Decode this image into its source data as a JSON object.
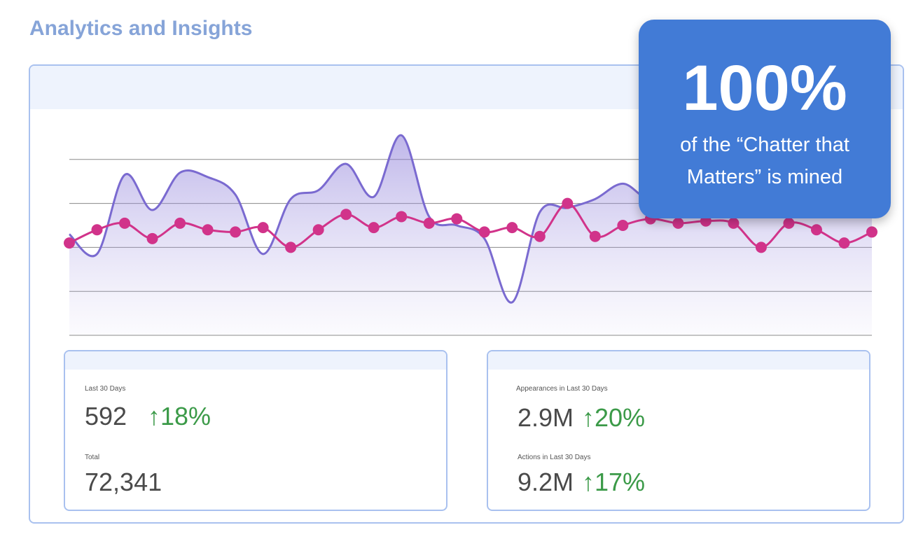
{
  "page": {
    "title": "Analytics and Insights"
  },
  "callout": {
    "value": "100%",
    "text": "of the “Chatter that Matters” is mined",
    "background": "#427bd6"
  },
  "chart_data": {
    "type": "line",
    "title": "",
    "xlabel": "",
    "ylabel": "",
    "ylim": [
      0,
      100
    ],
    "grid": true,
    "legend": "none",
    "x": [
      1,
      2,
      3,
      4,
      5,
      6,
      7,
      8,
      9,
      10,
      11,
      12,
      13,
      14,
      15,
      16,
      17,
      18,
      19,
      20,
      21,
      22,
      23,
      24,
      25,
      26,
      27,
      28,
      29,
      30
    ],
    "series": [
      {
        "kind": "area",
        "color": "#7a6ad0",
        "values": [
          46,
          37,
          73,
          57,
          74,
          72,
          64,
          37,
          62,
          66,
          78,
          63,
          91,
          54,
          50,
          44,
          15,
          56,
          58,
          62,
          69,
          62,
          72,
          68,
          80,
          56,
          70,
          68,
          62,
          76
        ]
      },
      {
        "kind": "line-markers",
        "color": "#d1338a",
        "values": [
          42,
          48,
          51,
          44,
          51,
          48,
          47,
          49,
          40,
          48,
          55,
          49,
          54,
          51,
          53,
          47,
          49,
          45,
          60,
          45,
          50,
          53,
          51,
          52,
          51,
          40,
          51,
          48,
          42,
          47
        ]
      }
    ]
  },
  "stats": {
    "left": {
      "label1": "Last 30 Days",
      "value1": "592",
      "change1": "↑18%",
      "label2": "Total",
      "value2": "72,341"
    },
    "right": {
      "label1": "Appearances in Last 30 Days",
      "value1": "2.9M",
      "change1": "↑20%",
      "label2": "Actions in Last 30 Days",
      "value2": "9.2M",
      "change2": "↑17%"
    }
  }
}
